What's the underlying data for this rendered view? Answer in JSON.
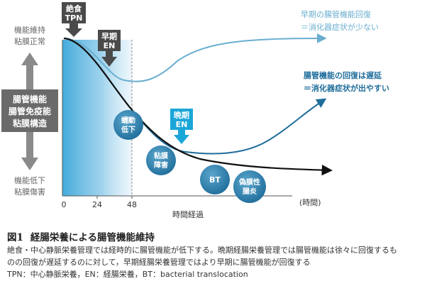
{
  "diagram": {
    "axis": {
      "top_left": [
        "機能維持",
        "粘膜正常"
      ],
      "bottom_left": [
        "機能低下",
        "粘膜傷害"
      ],
      "center_box": [
        "腸管機能",
        "腸管免疫能",
        "粘膜構造"
      ],
      "ticks": [
        "0",
        "24",
        "48"
      ],
      "unit": "(時間)",
      "xlabel": "時間経過"
    },
    "markers": {
      "fasting_tpn": [
        "絶食",
        "TPN"
      ],
      "early_en": [
        "早期",
        "EN"
      ],
      "late_en": [
        "晩期",
        "EN"
      ]
    },
    "bubbles": {
      "motility": [
        "蠕動",
        "低下"
      ],
      "mucosa": [
        "粘膜",
        "障害"
      ],
      "bt": [
        "BT"
      ],
      "pseudomembranous": [
        "偽膜性",
        "腸炎"
      ]
    },
    "annotations": {
      "early": [
        "早期の腸管機能回復",
        "＝消化器症状が少ない"
      ],
      "late": [
        "腸管機能の回復は遅延",
        "＝消化器症状が出やすい"
      ]
    },
    "colors": {
      "curve_early": "#6aaed0",
      "curve_late": "#1f6d9b",
      "curve_tpn": "#111111",
      "bubble": "#2f7fa8",
      "arrow_gray": "#8a8a8a",
      "box_gray": "#6a6a6a",
      "marker_dark": "#4a4a4a",
      "marker_late": "#1ba6d8",
      "shade": "#3aa6d9"
    }
  },
  "caption": {
    "number": "図1",
    "title": "経腸栄養による腸管機能維持",
    "lines": [
      "絶食・中心静脈栄養管理では経時的に腸管機能が低下する。晩期経腸栄養管理では腸管機能は徐々に回復するも",
      "のの回復が遅延するのに対して，早期経腸栄養管理ではより早期に腸管機能が回復する",
      "TPN：中心静脈栄養，EN：経腸栄養，BT：bacterial translocation"
    ]
  }
}
